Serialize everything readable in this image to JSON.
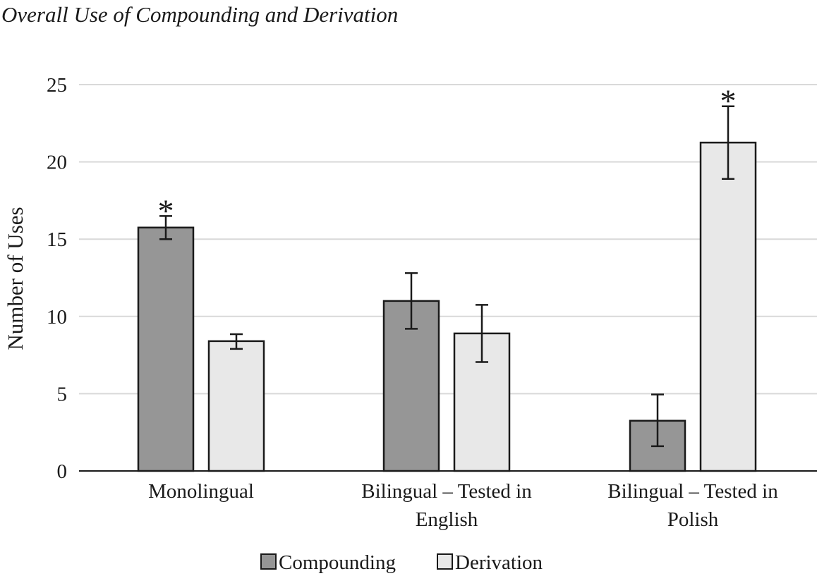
{
  "chart_data": {
    "type": "bar",
    "title": "Overall Use of Compounding and Derivation",
    "ylabel": "Number of Uses",
    "xlabel": "",
    "ylim": [
      0,
      25
    ],
    "yticks": [
      "0",
      "5",
      "10",
      "15",
      "20",
      "25"
    ],
    "grid": "horizontal",
    "legend_position": "bottom",
    "categories": [
      [
        "Monolingual"
      ],
      [
        "Bilingual – Tested in",
        "English"
      ],
      [
        "Bilingual – Tested in",
        "Polish"
      ]
    ],
    "series": [
      {
        "name": "Compounding",
        "color": "#969696",
        "values": [
          15.75,
          11.0,
          3.25
        ],
        "error_low": [
          15.0,
          9.2,
          1.6
        ],
        "error_high": [
          16.5,
          12.8,
          4.95
        ]
      },
      {
        "name": "Derivation",
        "color": "#e8e8e8",
        "values": [
          8.4,
          8.9,
          21.25
        ],
        "error_low": [
          7.9,
          7.05,
          18.9
        ],
        "error_high": [
          8.85,
          10.75,
          23.6
        ]
      }
    ],
    "annotations": [
      {
        "text": "*",
        "category": 0,
        "series": 0
      },
      {
        "text": "*",
        "category": 2,
        "series": 1
      }
    ]
  }
}
